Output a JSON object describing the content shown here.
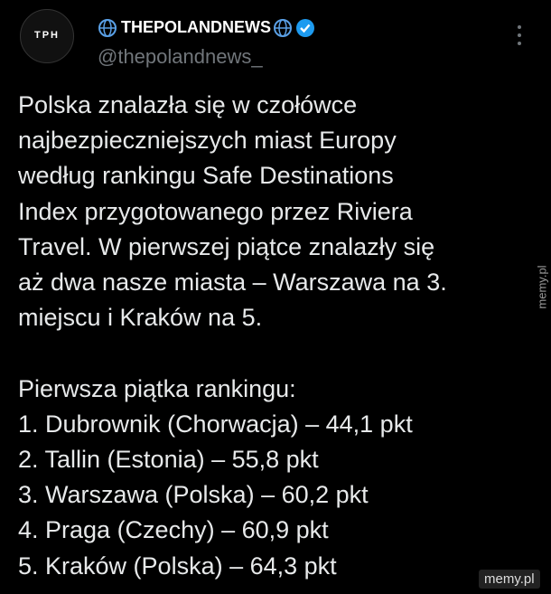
{
  "header": {
    "avatar_text": "TPH",
    "display_name": "THEPOLANDNEWS",
    "handle": "@thepolandnews_"
  },
  "body": {
    "lines": [
      "Polska znalazła się w czołówce",
      "najbezpieczniejszych miast Europy",
      "według rankingu Safe Destinations",
      "Index przygotowanego przez Riviera",
      "Travel. W pierwszej piątce znalazły się",
      "aż dwa nasze miasta – Warszawa na 3.",
      "miejscu i Kraków na 5."
    ],
    "ranking_heading": "Pierwsza piątka rankingu:",
    "ranking": [
      "1. Dubrownik (Chorwacja) – 44,1 pkt",
      "2. Tallin (Estonia) – 55,8 pkt",
      "3. Warszawa (Polska) – 60,2 pkt",
      "4. Praga (Czechy) – 60,9 pkt",
      "5. Kraków (Polska) – 64,3 pkt"
    ]
  },
  "watermark": {
    "side": "memy.pl",
    "corner": "memy.pl"
  }
}
